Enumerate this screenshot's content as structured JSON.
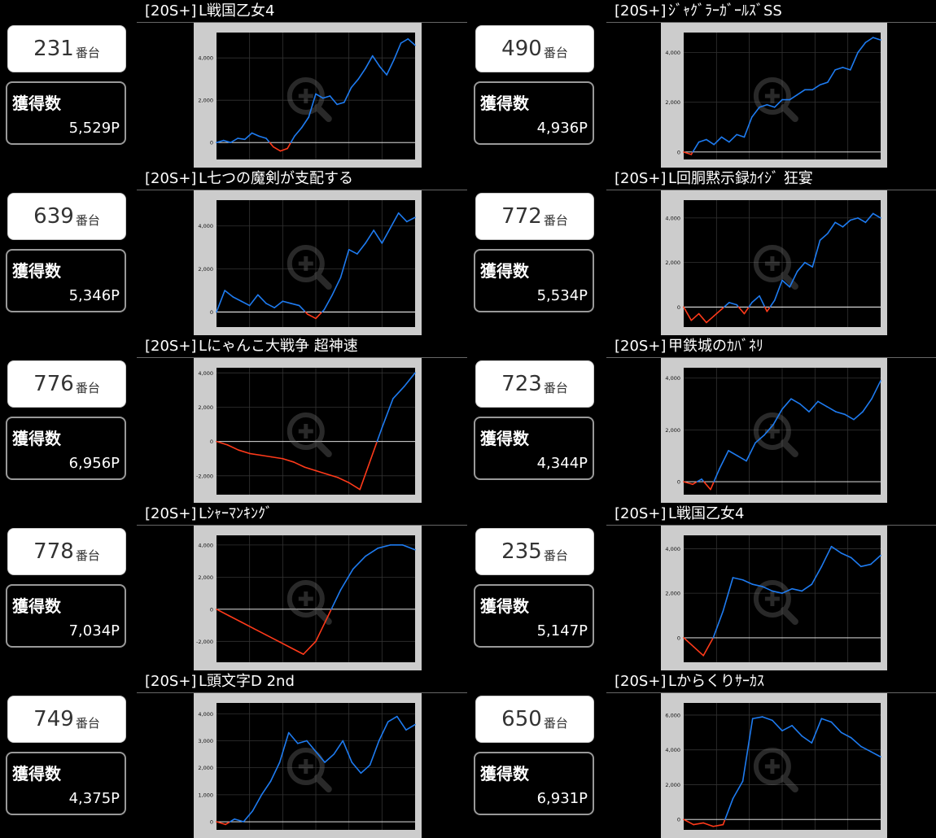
{
  "cards": [
    {
      "tag": "[20S+]",
      "title": "L戦国乙女4",
      "machine": "231",
      "suffix": "番台",
      "payout_label": "獲得数",
      "payout": "5,529P",
      "chart_data": {
        "type": "line",
        "yticks": [
          0,
          2000,
          4000
        ],
        "ytick_labels": [
          "0",
          "2,000",
          "4,000"
        ],
        "ylim": [
          -800,
          5200
        ],
        "values": [
          0,
          100,
          0,
          200,
          150,
          450,
          300,
          200,
          -200,
          -400,
          -280,
          300,
          700,
          1200,
          2300,
          2100,
          2200,
          1800,
          1900,
          2600,
          3000,
          3500,
          4100,
          3600,
          3200,
          3900,
          4700,
          4900,
          4600
        ]
      }
    },
    {
      "tag": "[20S+]",
      "title": "ｼﾞｬｸﾞﾗｰｶﾞｰﾙｽﾞSS",
      "machine": "490",
      "suffix": "番台",
      "payout_label": "獲得数",
      "payout": "4,936P",
      "chart_data": {
        "type": "line",
        "yticks": [
          0,
          2000,
          4000
        ],
        "ytick_labels": [
          "0",
          "2,000",
          "4,000"
        ],
        "ylim": [
          -300,
          4800
        ],
        "values": [
          0,
          -100,
          400,
          500,
          300,
          600,
          400,
          700,
          600,
          1400,
          1800,
          1900,
          1800,
          2100,
          2100,
          2300,
          2500,
          2500,
          2700,
          2800,
          3300,
          3400,
          3300,
          4000,
          4400,
          4600,
          4500
        ]
      }
    },
    {
      "tag": "[20S+]",
      "title": "L七つの魔剣が支配する",
      "machine": "639",
      "suffix": "番台",
      "payout_label": "獲得数",
      "payout": "5,346P",
      "chart_data": {
        "type": "line",
        "yticks": [
          0,
          2000,
          4000
        ],
        "ytick_labels": [
          "0",
          "2,000",
          "4,000"
        ],
        "ylim": [
          -700,
          5200
        ],
        "values": [
          0,
          1000,
          700,
          500,
          300,
          800,
          400,
          200,
          500,
          400,
          300,
          -100,
          -300,
          100,
          800,
          1600,
          2900,
          2700,
          3200,
          3800,
          3200,
          3900,
          4600,
          4200,
          4400
        ]
      }
    },
    {
      "tag": "[20S+]",
      "title": "L回胴黙示録ｶｲｼﾞ 狂宴",
      "machine": "772",
      "suffix": "番台",
      "payout_label": "獲得数",
      "payout": "5,534P",
      "chart_data": {
        "type": "line",
        "yticks": [
          0,
          2000,
          4000
        ],
        "ytick_labels": [
          "0",
          "2,000",
          "4,000"
        ],
        "ylim": [
          -900,
          4800
        ],
        "values": [
          0,
          -600,
          -300,
          -700,
          -400,
          -100,
          200,
          100,
          -300,
          200,
          500,
          -200,
          300,
          1200,
          900,
          1600,
          2000,
          1800,
          3000,
          3300,
          3800,
          3600,
          3900,
          4000,
          3800,
          4200,
          4000
        ]
      }
    },
    {
      "tag": "[20S+]",
      "title": "Lにゃんこ大戦争 超神速",
      "machine": "776",
      "suffix": "番台",
      "payout_label": "獲得数",
      "payout": "6,956P",
      "chart_data": {
        "type": "line",
        "yticks": [
          -2000,
          0,
          2000,
          4000
        ],
        "ytick_labels": [
          "-2,000",
          "0",
          "2,000",
          "4,000"
        ],
        "ylim": [
          -3100,
          4300
        ],
        "values": [
          0,
          -200,
          -500,
          -700,
          -800,
          -900,
          -1000,
          -1200,
          -1500,
          -1700,
          -1900,
          -2100,
          -2400,
          -2800,
          -1000,
          800,
          2500,
          3200,
          4000
        ]
      }
    },
    {
      "tag": "[20S+]",
      "title": "甲鉄城のｶﾊﾞﾈﾘ",
      "machine": "723",
      "suffix": "番台",
      "payout_label": "獲得数",
      "payout": "4,344P",
      "chart_data": {
        "type": "line",
        "yticks": [
          0,
          2000,
          4000
        ],
        "ytick_labels": [
          "0",
          "2,000",
          "4,000"
        ],
        "ylim": [
          -500,
          4400
        ],
        "values": [
          0,
          -100,
          100,
          -300,
          500,
          1200,
          1000,
          800,
          1500,
          1800,
          2200,
          2800,
          3200,
          3000,
          2700,
          3100,
          2900,
          2700,
          2600,
          2400,
          2700,
          3200,
          3900
        ]
      }
    },
    {
      "tag": "[20S+]",
      "title": "Lｼｬｰﾏﾝｷﾝｸﾞ",
      "machine": "778",
      "suffix": "番台",
      "payout_label": "獲得数",
      "payout": "7,034P",
      "chart_data": {
        "type": "line",
        "yticks": [
          -2000,
          0,
          2000,
          4000
        ],
        "ytick_labels": [
          "-2,000",
          "0",
          "2,000",
          "4,000"
        ],
        "ylim": [
          -3300,
          4600
        ],
        "values": [
          0,
          -400,
          -800,
          -1200,
          -1600,
          -2000,
          -2400,
          -2800,
          -2000,
          -400,
          1200,
          2500,
          3300,
          3800,
          4000,
          4000,
          3700
        ]
      }
    },
    {
      "tag": "[20S+]",
      "title": "L戦国乙女4",
      "machine": "235",
      "suffix": "番台",
      "payout_label": "獲得数",
      "payout": "5,147P",
      "chart_data": {
        "type": "line",
        "yticks": [
          0,
          2000,
          4000
        ],
        "ytick_labels": [
          "0",
          "2,000",
          "4,000"
        ],
        "ylim": [
          -1100,
          4600
        ],
        "values": [
          0,
          -400,
          -800,
          0,
          1200,
          2700,
          2600,
          2400,
          2300,
          2100,
          2000,
          2200,
          2100,
          2400,
          3200,
          4100,
          3800,
          3600,
          3200,
          3300,
          3700
        ]
      }
    },
    {
      "tag": "[20S+]",
      "title": "L頭文字D 2nd",
      "machine": "749",
      "suffix": "番台",
      "payout_label": "獲得数",
      "payout": "4,375P",
      "chart_data": {
        "type": "line",
        "yticks": [
          0,
          1000,
          2000,
          3000,
          4000
        ],
        "ytick_labels": [
          "0",
          "1,000",
          "2,000",
          "3,000",
          "4,000"
        ],
        "ylim": [
          -300,
          4400
        ],
        "values": [
          0,
          -100,
          100,
          0,
          400,
          1000,
          1500,
          2200,
          3300,
          2900,
          3000,
          2600,
          2200,
          2500,
          3000,
          2200,
          1800,
          2100,
          3000,
          3700,
          3900,
          3400,
          3600
        ]
      }
    },
    {
      "tag": "[20S+]",
      "title": "Lからくりｻｰｶｽ",
      "machine": "650",
      "suffix": "番台",
      "payout_label": "獲得数",
      "payout": "6,931P",
      "chart_data": {
        "type": "line",
        "yticks": [
          0,
          2000,
          4000,
          6000
        ],
        "ytick_labels": [
          "0",
          "2,000",
          "4,000",
          "6,000"
        ],
        "ylim": [
          -600,
          6700
        ],
        "values": [
          0,
          -300,
          -200,
          -400,
          -300,
          1200,
          2200,
          5800,
          5900,
          5700,
          5100,
          5400,
          4800,
          4400,
          5800,
          5600,
          5000,
          4700,
          4200,
          3900,
          3600
        ]
      }
    }
  ],
  "colors": {
    "positive": "#1e7bf0",
    "negative": "#ff3a1a",
    "plot_bg": "#000000",
    "frame": "#cccccc"
  }
}
